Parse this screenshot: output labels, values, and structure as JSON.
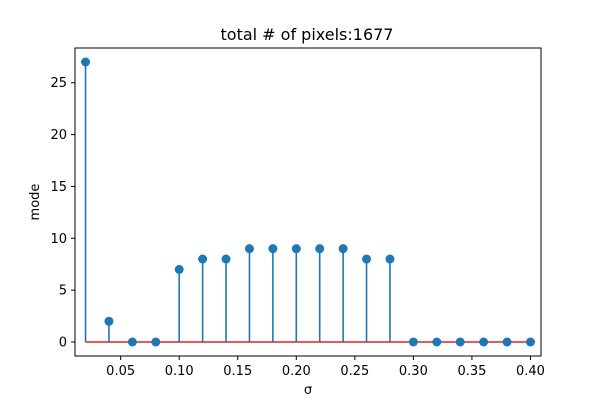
{
  "chart_data": {
    "type": "stem",
    "title": "total # of pixels:1677",
    "xlabel": "σ",
    "ylabel": "mode",
    "xlim": [
      0.011,
      0.409
    ],
    "ylim": [
      -1.35,
      28.35
    ],
    "xticks": [
      0.05,
      0.1,
      0.15,
      0.2,
      0.25,
      0.3,
      0.35,
      0.4
    ],
    "xtick_labels": [
      "0.05",
      "0.10",
      "0.15",
      "0.20",
      "0.25",
      "0.30",
      "0.35",
      "0.40"
    ],
    "yticks": [
      0,
      5,
      10,
      15,
      20,
      25
    ],
    "ytick_labels": [
      "0",
      "5",
      "10",
      "15",
      "20",
      "25"
    ],
    "baseline": 0,
    "x": [
      0.02,
      0.04,
      0.06,
      0.08,
      0.1,
      0.12,
      0.14,
      0.16,
      0.18,
      0.2,
      0.22,
      0.24,
      0.26,
      0.28,
      0.3,
      0.32,
      0.34,
      0.36,
      0.38,
      0.4
    ],
    "values": [
      27,
      2,
      0,
      0,
      7,
      8,
      8,
      9,
      9,
      9,
      9,
      9,
      8,
      8,
      0,
      0,
      0,
      0,
      0,
      0
    ],
    "grid": false,
    "colors": {
      "stem": "#1f77b4",
      "marker": "#1f77b4",
      "baseline": "#d62728"
    }
  }
}
